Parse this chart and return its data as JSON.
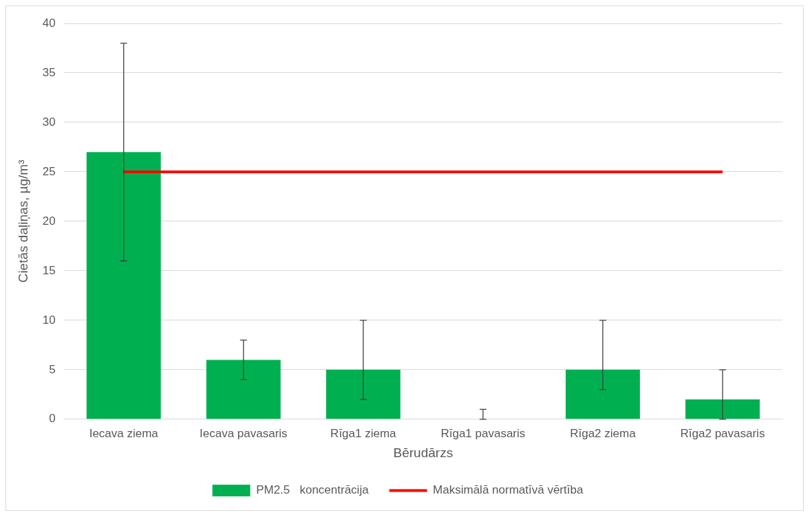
{
  "chart_data": {
    "type": "bar",
    "xlabel": "Bērudārzs",
    "ylabel": "Cietās daļiņas, µg/m³",
    "categories": [
      "Iecava ziema",
      "Iecava pavasaris",
      "Rīga1 ziema",
      "Rīga1 pavasaris",
      "Rīga2 ziema",
      "Rīga2 pavasaris"
    ],
    "series": [
      {
        "name": "PM2.5   koncentrācija",
        "color": "#00b050",
        "values": [
          27,
          6,
          5,
          0,
          5,
          2
        ],
        "errors": [
          [
            16,
            38
          ],
          [
            4,
            8
          ],
          [
            2,
            10
          ],
          [
            0,
            1
          ],
          [
            3,
            10
          ],
          [
            0,
            5
          ]
        ]
      },
      {
        "name": "Maksimālā normatīvā vērtība",
        "type": "line",
        "color": "#ff0000",
        "values": [
          25,
          25,
          25,
          25,
          25,
          25
        ]
      }
    ],
    "ylim": [
      0,
      40
    ],
    "yticks": [
      0,
      5,
      10,
      15,
      20,
      25,
      30,
      35,
      40
    ],
    "grid": "y",
    "legend": "bottom",
    "marker": "none"
  }
}
